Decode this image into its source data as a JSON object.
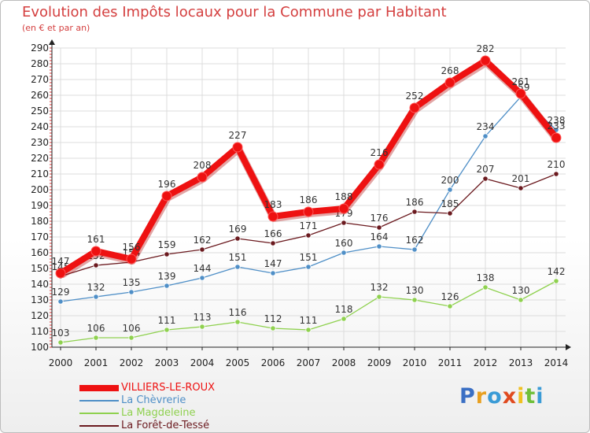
{
  "chart_data": {
    "type": "line",
    "title": "Evolution des Impôts locaux pour la Commune par Habitant",
    "subtitle": "(en € et par an)",
    "xlabel": "",
    "ylabel": "",
    "x": [
      "2000",
      "2001",
      "2002",
      "2003",
      "2004",
      "2005",
      "2006",
      "2007",
      "2008",
      "2009",
      "2010",
      "2011",
      "2012",
      "2013",
      "2014"
    ],
    "ylim": [
      100,
      290
    ],
    "yticks": [
      100,
      110,
      120,
      130,
      140,
      150,
      160,
      170,
      180,
      190,
      200,
      210,
      220,
      230,
      240,
      250,
      260,
      270,
      280,
      290
    ],
    "grid": true,
    "series": [
      {
        "name": "La Magdeleine",
        "color": "#8fd14f",
        "values": [
          103,
          106,
          106,
          111,
          113,
          116,
          112,
          111,
          118,
          132,
          130,
          126,
          138,
          130,
          142
        ]
      },
      {
        "name": "La Chèvrerie",
        "color": "#4f8fc7",
        "values": [
          129,
          132,
          135,
          139,
          144,
          151,
          147,
          151,
          160,
          164,
          162,
          200,
          234,
          259,
          238
        ]
      },
      {
        "name": "La Forêt-de-Tessé",
        "color": "#6b1a1f",
        "values": [
          145,
          152,
          154,
          159,
          162,
          169,
          166,
          171,
          179,
          176,
          186,
          185,
          207,
          201,
          210
        ]
      },
      {
        "name": "VILLIERS-LE-ROUX",
        "color": "#ee1111",
        "values": [
          147,
          161,
          156,
          196,
          208,
          227,
          183,
          186,
          188,
          216,
          252,
          268,
          282,
          261,
          233
        ]
      }
    ],
    "legend_order": [
      "VILLIERS-LE-ROUX",
      "La Chèvrerie",
      "La Magdeleine",
      "La Forêt-de-Tessé"
    ]
  },
  "brand": {
    "letters": [
      "P",
      "r",
      "o",
      "x",
      "i",
      "t",
      "i"
    ],
    "colors": [
      "#3a6fc4",
      "#e8a020",
      "#3a9bd6",
      "#e04a1f",
      "#f0c020",
      "#6fbf3a",
      "#3a9bd6"
    ]
  }
}
